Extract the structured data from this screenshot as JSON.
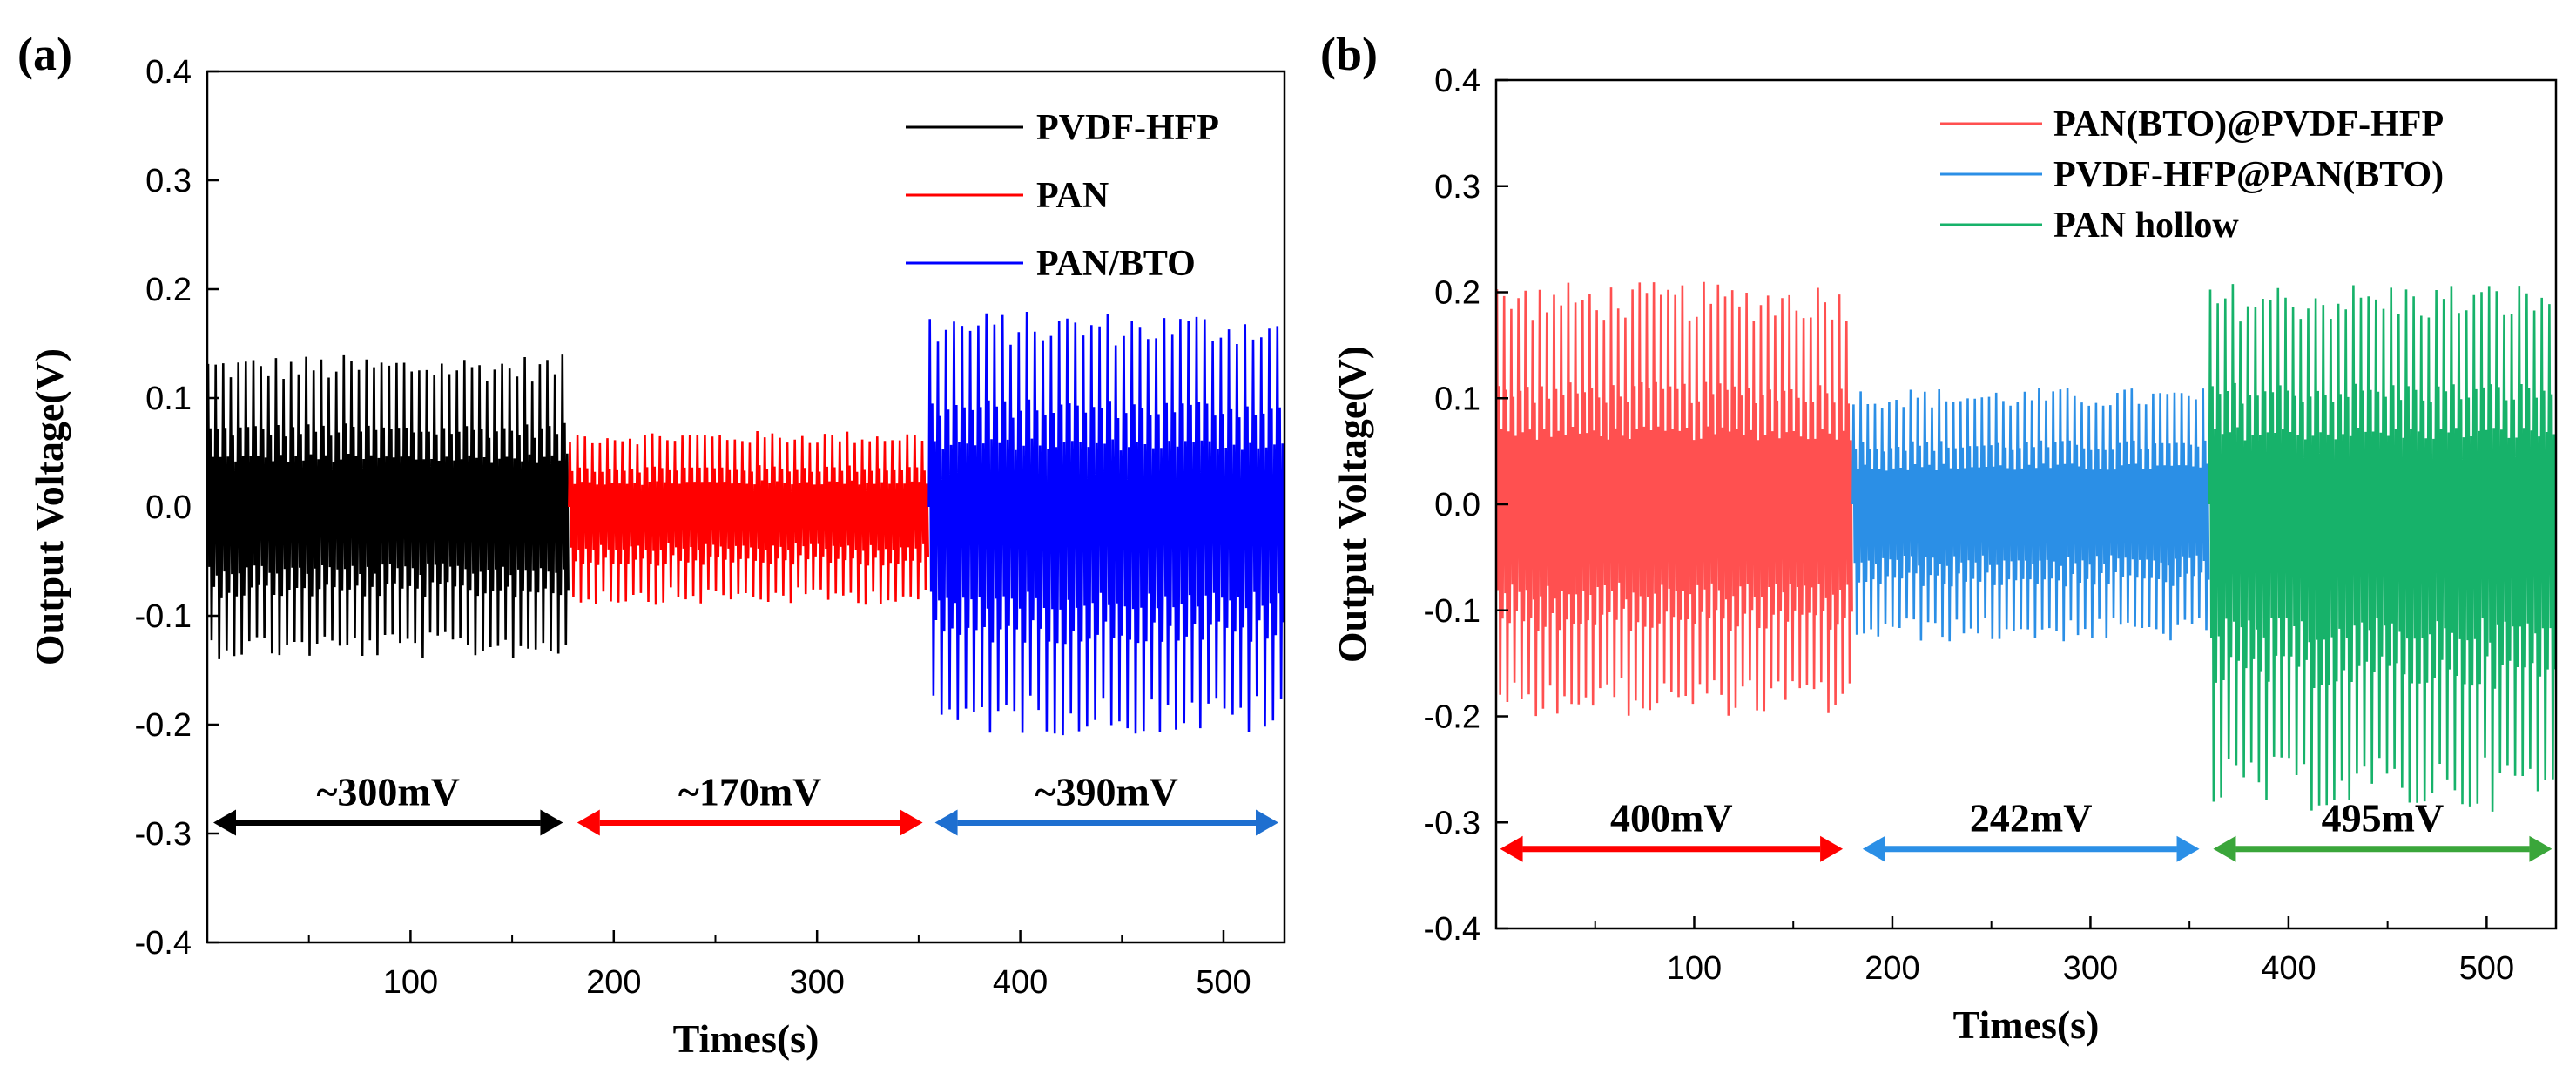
{
  "figure": {
    "panel_count": 2
  },
  "chart_data": [
    {
      "type": "line",
      "panel_label": "(a)",
      "xlabel": "Times(s)",
      "ylabel": "Output Voltage(V)",
      "xlim": [
        0,
        530
      ],
      "ylim": [
        -0.4,
        0.4
      ],
      "xticks": [
        100,
        200,
        300,
        400,
        500
      ],
      "yticks": [
        -0.4,
        -0.3,
        -0.2,
        -0.1,
        0.0,
        0.1,
        0.2,
        0.3,
        0.4
      ],
      "ytick_labels": [
        "-0.4",
        "-0.3",
        "-0.2",
        "-0.1",
        "0.0",
        "0.1",
        "0.2",
        "0.3",
        "0.4"
      ],
      "legend_position": "top-right",
      "series": [
        {
          "name": "PVDF-HFP",
          "color": "#000000",
          "x_range": [
            0,
            178
          ],
          "approx_max": 0.14,
          "approx_min": -0.14,
          "cycles": 48
        },
        {
          "name": "PAN",
          "color": "#ff0000",
          "x_range": [
            178,
            355
          ],
          "approx_max": 0.07,
          "approx_min": -0.09,
          "cycles": 48
        },
        {
          "name": "PAN/BTO",
          "color": "#0000ff",
          "x_range": [
            355,
            530
          ],
          "approx_max": 0.18,
          "approx_min": -0.21,
          "cycles": 44
        }
      ],
      "annotations": [
        {
          "text": "~300mV",
          "color": "#000000",
          "x_range": [
            3,
            175
          ],
          "y": -0.29
        },
        {
          "text": "~170mV",
          "color": "#ff0000",
          "x_range": [
            182,
            352
          ],
          "y": -0.29
        },
        {
          "text": "~390mV",
          "color": "#1e6fd0",
          "x_range": [
            358,
            527
          ],
          "y": -0.29
        }
      ]
    },
    {
      "type": "line",
      "panel_label": "(b)",
      "xlabel": "Times(s)",
      "ylabel": "Output Voltage(V)",
      "xlim": [
        0,
        535
      ],
      "ylim": [
        -0.4,
        0.4
      ],
      "xticks": [
        100,
        200,
        300,
        400,
        500
      ],
      "yticks": [
        -0.4,
        -0.3,
        -0.2,
        -0.1,
        0.0,
        0.1,
        0.2,
        0.3,
        0.4
      ],
      "ytick_labels": [
        "-0.4",
        "-0.3",
        "-0.2",
        "-0.1",
        "0.0",
        "0.1",
        "0.2",
        "0.3",
        "0.4"
      ],
      "legend_position": "top-right",
      "series": [
        {
          "name": "PAN(BTO)@PVDF-HFP",
          "color": "#ff5050",
          "x_range": [
            0,
            180
          ],
          "approx_max": 0.21,
          "approx_min": -0.2,
          "cycles": 50
        },
        {
          "name": "PVDF-HFP@PAN(BTO)",
          "color": "#2b8fe6",
          "x_range": [
            180,
            360
          ],
          "approx_max": 0.11,
          "approx_min": -0.13,
          "cycles": 50
        },
        {
          "name": "PAN hollow",
          "color": "#17b26a",
          "x_range": [
            360,
            535
          ],
          "approx_max": 0.21,
          "approx_min": -0.29,
          "cycles": 46
        }
      ],
      "annotations": [
        {
          "text": "400mV",
          "color": "#ff0000",
          "x_range": [
            2,
            175
          ],
          "y": -0.325
        },
        {
          "text": "242mV",
          "color": "#2b8fe6",
          "x_range": [
            185,
            355
          ],
          "y": -0.325
        },
        {
          "text": "495mV",
          "color": "#3aa63a",
          "x_range": [
            362,
            533
          ],
          "y": -0.325
        }
      ]
    }
  ]
}
